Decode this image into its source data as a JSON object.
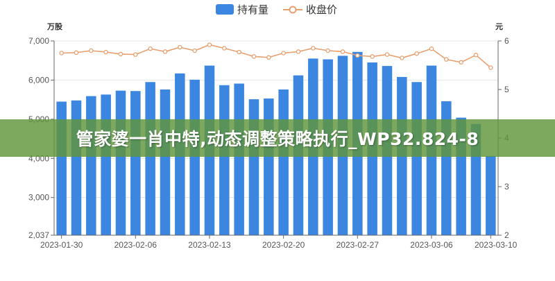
{
  "legend": {
    "bar_label": "持有量",
    "line_label": "收盘价"
  },
  "colors": {
    "bar": "#3a86e0",
    "line": "#e8a070",
    "axis": "#666666",
    "grid": "#e6e6e6"
  },
  "overlay": {
    "text": "管家婆一肖中特,动态调整策略执行_WP32.824-8",
    "color": "#60963c"
  },
  "chart_data": {
    "type": "bar",
    "title": "",
    "categories": [
      "2023-01-30",
      "2023-01-31",
      "2023-02-01",
      "2023-02-02",
      "2023-02-03",
      "2023-02-06",
      "2023-02-07",
      "2023-02-08",
      "2023-02-09",
      "2023-02-10",
      "2023-02-13",
      "2023-02-14",
      "2023-02-15",
      "2023-02-16",
      "2023-02-17",
      "2023-02-20",
      "2023-02-21",
      "2023-02-22",
      "2023-02-23",
      "2023-02-24",
      "2023-02-27",
      "2023-02-28",
      "2023-03-01",
      "2023-03-02",
      "2023-03-03",
      "2023-03-06",
      "2023-03-07",
      "2023-03-08",
      "2023-03-09",
      "2023-03-10"
    ],
    "x_tick_labels": [
      "2023-01-30",
      "2023-02-06",
      "2023-02-13",
      "2023-02-20",
      "2023-02-27",
      "2023-03-06",
      "2023-03-10"
    ],
    "series": [
      {
        "name": "持有量",
        "type": "bar",
        "axis": "left",
        "values": [
          5450,
          5480,
          5590,
          5630,
          5730,
          5720,
          5950,
          5760,
          6170,
          6010,
          6370,
          5870,
          5910,
          5510,
          5530,
          5760,
          6120,
          6550,
          6530,
          6620,
          6720,
          6450,
          6360,
          6080,
          5950,
          6370,
          5460,
          5040,
          4880,
          4060
        ]
      },
      {
        "name": "收盘价",
        "type": "line",
        "axis": "right",
        "values": [
          5.75,
          5.76,
          5.8,
          5.77,
          5.73,
          5.72,
          5.84,
          5.78,
          5.87,
          5.8,
          5.92,
          5.85,
          5.77,
          5.68,
          5.66,
          5.75,
          5.78,
          5.85,
          5.8,
          5.78,
          5.7,
          5.68,
          5.72,
          5.65,
          5.74,
          5.84,
          5.62,
          5.56,
          5.71,
          5.45
        ]
      }
    ],
    "y_left": {
      "label": "万股",
      "min": 2037,
      "max": 7000,
      "ticks": [
        2037,
        3000,
        4000,
        5000,
        6000,
        7000
      ],
      "tick_labels": [
        "2,037",
        "3,000",
        "4,000",
        "5,000",
        "6,000",
        "7,000"
      ]
    },
    "y_right": {
      "label": "元",
      "min": 2,
      "max": 6,
      "ticks": [
        2,
        3,
        4,
        5,
        6
      ],
      "tick_labels": [
        "2",
        "3",
        "4",
        "5",
        "6"
      ]
    },
    "grid": true,
    "legend_position": "top-center"
  }
}
